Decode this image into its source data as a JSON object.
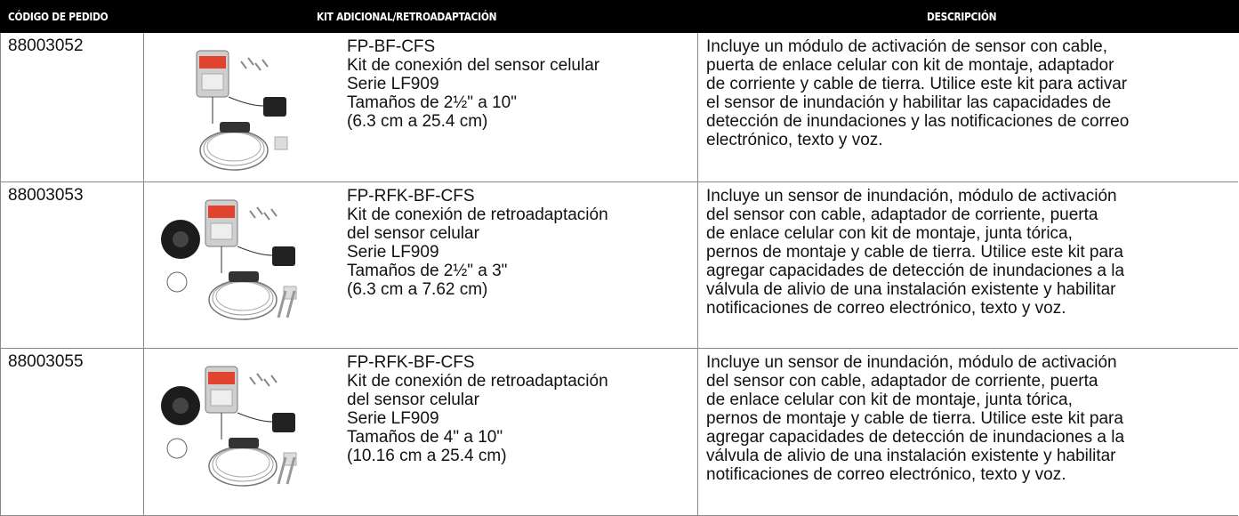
{
  "table": {
    "headers": [
      "CÓDIGO DE PEDIDO",
      "KIT ADICIONAL/RETROADAPTACIÓN",
      "DESCRIPCIÓN"
    ],
    "rows": [
      {
        "code": "88003052",
        "kit_lines": [
          "FP-BF-CFS",
          "Kit de conexión del sensor celular",
          "Serie LF909",
          "Tamaños de 2½\" a 10\"",
          "(6.3 cm a 25.4 cm)"
        ],
        "description_lines": [
          "Incluye un módulo de activación de sensor con cable,",
          "puerta de enlace celular con kit de montaje, adaptador",
          "de corriente y cable de tierra. Utilice este kit para activar",
          "el sensor de inundación y habilitar las capacidades de",
          "detección de inundaciones y las notificaciones de correo",
          "electrónico, texto y voz."
        ]
      },
      {
        "code": "88003053",
        "kit_lines": [
          "FP-RFK-BF-CFS",
          "Kit de conexión de retroadaptación",
          "del sensor celular",
          "Serie LF909",
          "Tamaños de 2½\" a 3\"",
          "(6.3 cm a 7.62 cm)"
        ],
        "description_lines": [
          "Incluye un sensor de inundación, módulo de activación",
          "del sensor con cable, adaptador de corriente, puerta",
          "de enlace celular con kit de montaje, junta tórica,",
          "pernos de montaje y cable de tierra. Utilice este kit para",
          "agregar capacidades de detección de inundaciones a la",
          "válvula de alivio de una instalación existente y habilitar",
          "notificaciones de correo electrónico, texto y voz."
        ]
      },
      {
        "code": "88003055",
        "kit_lines": [
          "FP-RFK-BF-CFS",
          "Kit de conexión de retroadaptación",
          "del sensor celular",
          "Serie LF909",
          "Tamaños de 4\" a 10\"",
          "(10.16 cm a 25.4 cm)"
        ],
        "description_lines": [
          "Incluye un sensor de inundación, módulo de activación",
          "del sensor con cable, adaptador de corriente, puerta",
          "de enlace celular con kit de montaje, junta tórica,",
          "pernos de montaje y cable de tierra. Utilice este kit para",
          "agregar capacidades de detección de inundaciones a la",
          "válvula de alivio de una instalación existente y habilitar",
          "notificaciones de correo electrónico, texto y voz."
        ]
      }
    ]
  }
}
